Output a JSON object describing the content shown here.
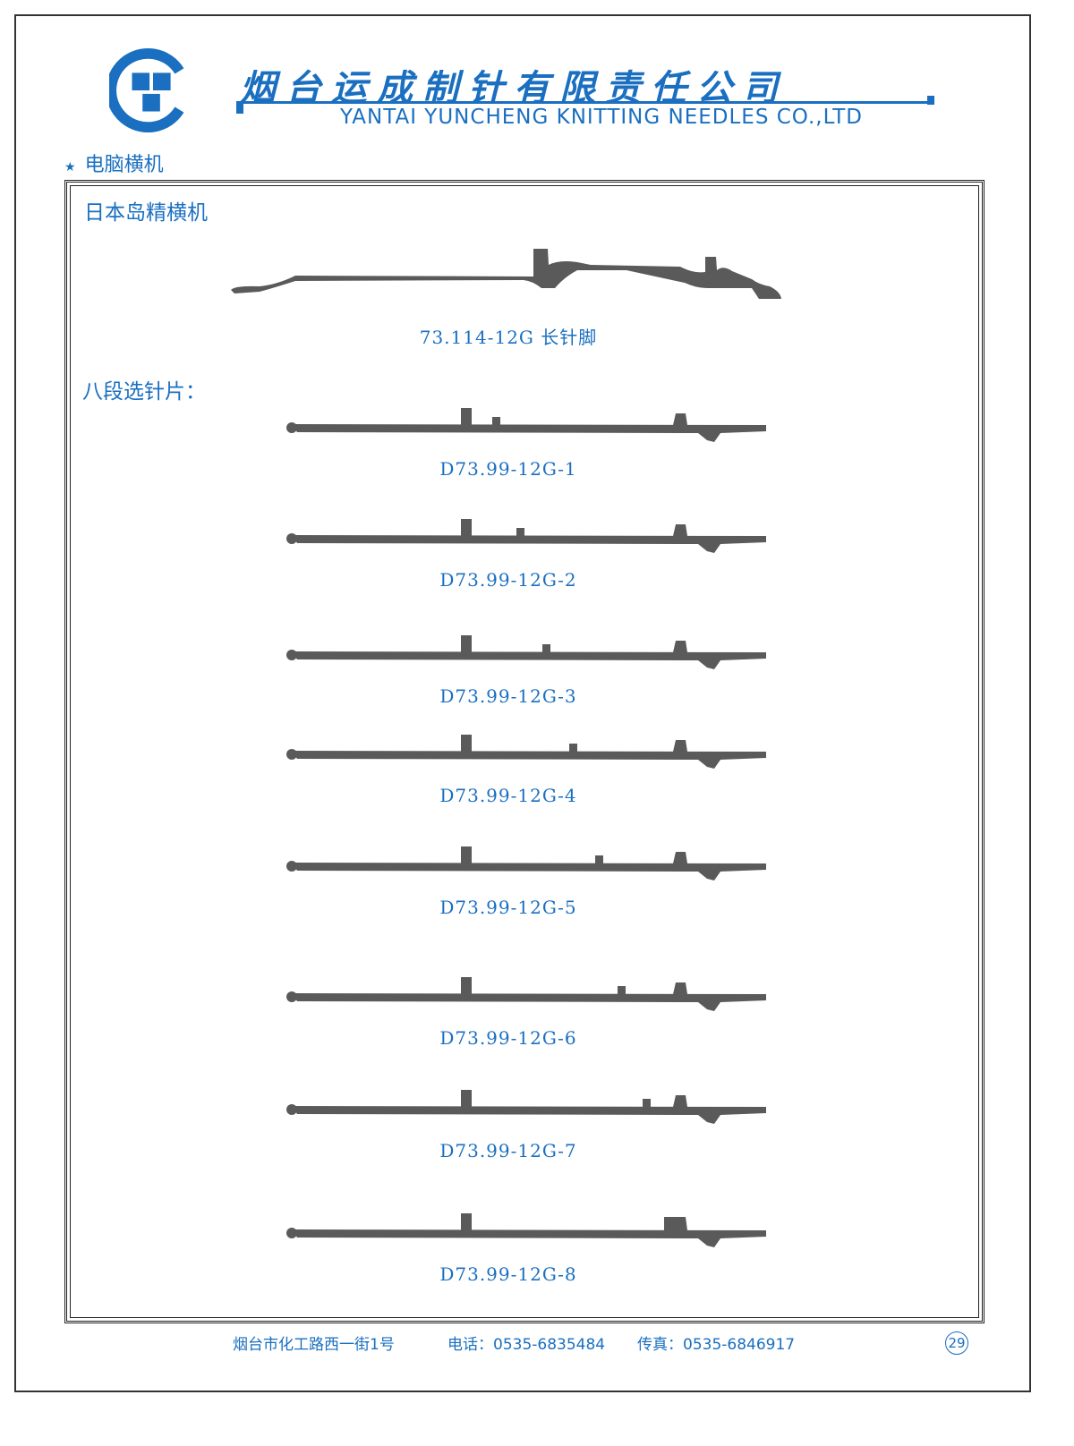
{
  "header": {
    "company_cn": "烟台运成制针有限责任公司",
    "company_en": "YANTAI YUNCHENG KNITTING NEEDLES CO.,LTD",
    "brand_color": "#1a6fc0"
  },
  "section": {
    "star": "★",
    "title": "电脑横机"
  },
  "main": {
    "heading1": "日本岛精横机",
    "needle_main_label": "73.114-12G 长针脚",
    "heading2": "八段选针片：",
    "selectors": [
      {
        "label": "D73.99-12G-1"
      },
      {
        "label": "D73.99-12G-2"
      },
      {
        "label": "D73.99-12G-3"
      },
      {
        "label": "D73.99-12G-4"
      },
      {
        "label": "D73.99-12G-5"
      },
      {
        "label": "D73.99-12G-6"
      },
      {
        "label": "D73.99-12G-7"
      },
      {
        "label": "D73.99-12G-8"
      }
    ]
  },
  "footer": {
    "address": "烟台市化工路西一街1号",
    "phone": "电话：0535-6835484",
    "fax": "传真：0535-6846917",
    "page": "29"
  }
}
